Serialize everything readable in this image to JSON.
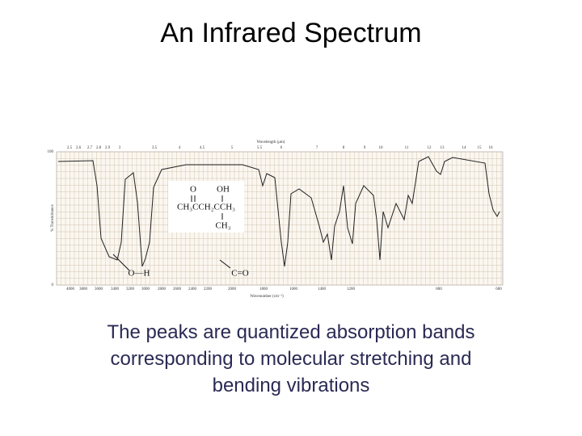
{
  "title": "An Infrared Spectrum",
  "spectrum": {
    "top_axis_label": "Wavelength (μm)",
    "bottom_axis_label": "Wavenumber (cm⁻¹)",
    "left_axis_label": "% Transmittance",
    "left_top": "100",
    "left_bottom": "0",
    "wavelength_ticks": [
      "2.5",
      "2.6",
      "2.7",
      "2.8",
      "2.9",
      "3",
      "3.5",
      "4",
      "4.5",
      "5",
      "5.5",
      "6",
      "7",
      "8",
      "9",
      "10",
      "11",
      "12",
      "13",
      "14",
      "15",
      "16"
    ],
    "wavenumber_ticks": [
      "4000",
      "3800",
      "3600",
      "3400",
      "3200",
      "3000",
      "2800",
      "2600",
      "2400",
      "2200",
      "2000",
      "1800",
      "1600",
      "1400",
      "1200",
      "800",
      "600"
    ],
    "molecule": {
      "top_left": "O",
      "top_right": "OH",
      "main": "CH₃CCH₂CCH₃",
      "bottom": "CH₃"
    },
    "oh_label": "O—H",
    "co_label": "C=O"
  },
  "caption": [
    "The peaks are quantized absorption bands",
    "corresponding to molecular stretching and",
    "bending vibrations"
  ]
}
